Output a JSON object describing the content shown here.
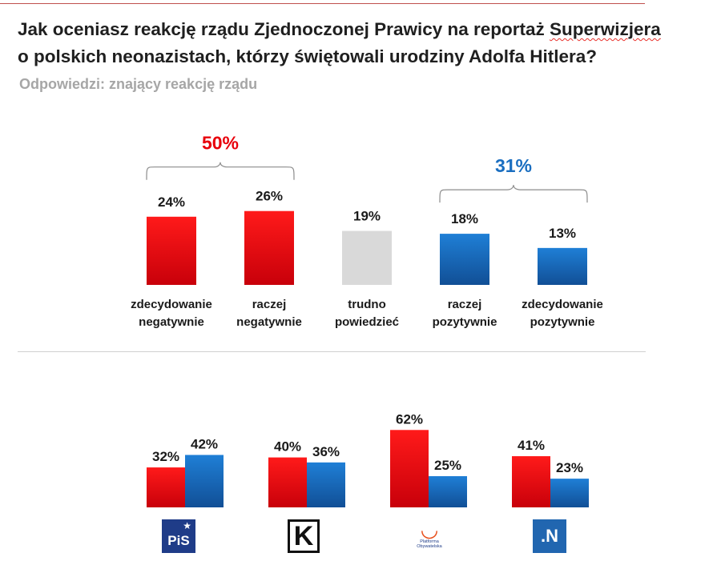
{
  "title": {
    "line1_pre": "Jak oceniasz reakcję rządu Zjednoczonej Prawicy na reportaż ",
    "line1_word": "Superwizjera",
    "line2": "o polskich neonazistach, którzy świętowali urodziny Adolfa Hitlera?"
  },
  "subtitle": "Odpowiedzi: znający reakcję rządu",
  "colors": {
    "red": "#e8000b",
    "blue": "#1a6ec0",
    "gray": "#d9d9d9",
    "red_text": "#e8000b",
    "blue_text": "#1a6ec0"
  },
  "chart_data": [
    {
      "type": "bar",
      "title": "Jak oceniasz reakcję rządu Zjednoczonej Prawicy na reportaż Superwizjera o polskich neonazistach, którzy świętowali urodziny Adolfa Hitlera?",
      "categories": [
        [
          "zdecydowanie",
          "negatywnie"
        ],
        [
          "raczej",
          "negatywnie"
        ],
        [
          "trudno",
          "powiedzieć"
        ],
        [
          "raczej",
          "pozytywnie"
        ],
        [
          "zdecydowanie",
          "pozytywnie"
        ]
      ],
      "values": [
        24,
        26,
        19,
        18,
        13
      ],
      "value_labels": [
        "24%",
        "26%",
        "19%",
        "18%",
        "13%"
      ],
      "bar_colors": [
        "red",
        "red",
        "gray",
        "blue",
        "blue"
      ],
      "unit": "%",
      "groups": [
        {
          "label": "50%",
          "color": "red",
          "from": 0,
          "to": 1
        },
        {
          "label": "31%",
          "color": "blue",
          "from": 3,
          "to": 4
        }
      ]
    },
    {
      "type": "bar",
      "categories": [
        "PiS",
        "Kukiz'15",
        "Platforma Obywatelska",
        "Nowoczesna"
      ],
      "series": [
        {
          "name": "negatywnie",
          "color": "red",
          "values": [
            32,
            40,
            62,
            41
          ],
          "labels": [
            "32%",
            "40%",
            "62%",
            "41%"
          ]
        },
        {
          "name": "pozytywnie",
          "color": "blue",
          "values": [
            42,
            36,
            25,
            23
          ],
          "labels": [
            "42%",
            "36%",
            "25%",
            "23%"
          ]
        }
      ],
      "unit": "%"
    }
  ],
  "logos": {
    "pis": {
      "text": "PiS",
      "icon": "pis-logo"
    },
    "kukiz": {
      "text": "K",
      "icon": "kukiz-logo"
    },
    "po": {
      "text": "Platforma Obywatelska",
      "icon": "platforma-logo"
    },
    "nowoczesna": {
      "text": ".N",
      "icon": "nowoczesna-logo"
    }
  }
}
